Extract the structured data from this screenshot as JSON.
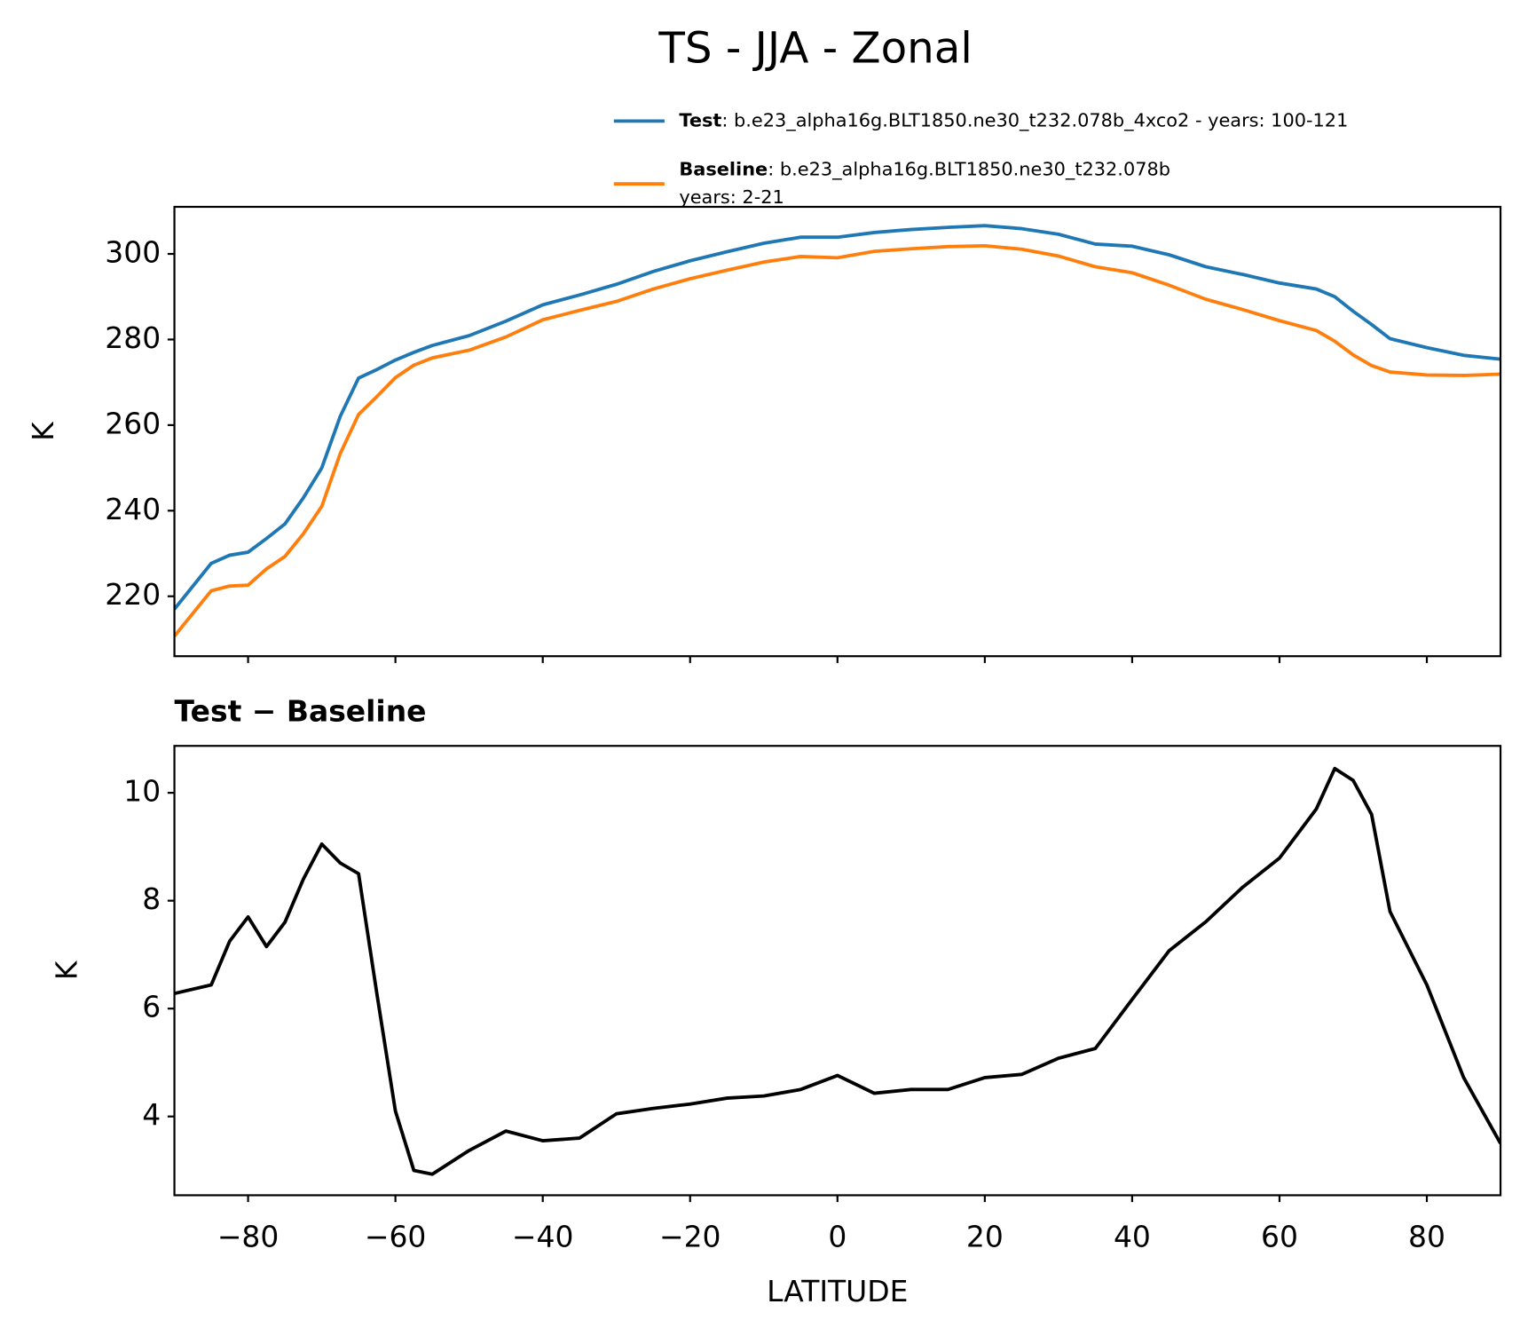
{
  "chart_data": [
    {
      "type": "line",
      "title": "TS - JJA - Zonal",
      "ylabel": "K",
      "x": [
        -90,
        -85,
        -82.5,
        -80,
        -77.5,
        -75,
        -72.5,
        -70,
        -67.5,
        -65,
        -62.5,
        -60,
        -57.5,
        -55,
        -50,
        -45,
        -40,
        -35,
        -30,
        -25,
        -20,
        -15,
        -10,
        -5,
        0,
        5,
        10,
        15,
        20,
        25,
        30,
        35,
        40,
        45,
        50,
        55,
        60,
        65,
        67.5,
        70,
        72.5,
        75,
        80,
        85,
        90
      ],
      "series": [
        {
          "name": "Test",
          "description": [
            ": b.e23_alpha16g.BLT1850.ne30_t232.078b_4xco2 - years: 100-121"
          ],
          "color": "#1f77b4",
          "values": [
            217,
            227.7,
            229.6,
            230.3,
            233.5,
            236.9,
            243,
            250,
            262,
            271,
            273,
            275.2,
            277,
            278.6,
            280.9,
            284.3,
            288.1,
            290.4,
            292.9,
            295.9,
            298.4,
            300.5,
            302.5,
            303.9,
            303.9,
            305,
            305.7,
            306.2,
            306.6,
            305.9,
            304.6,
            302.3,
            301.8,
            299.8,
            297,
            295.2,
            293.2,
            291.8,
            290,
            286.6,
            283.5,
            280.2,
            278.1,
            276.3,
            275.4
          ]
        },
        {
          "name": "Baseline",
          "description": [
            ": b.e23_alpha16g.BLT1850.ne30_t232.078b",
            "years: 2-21"
          ],
          "color": "#ff7f0e",
          "values": [
            210.7,
            221.3,
            222.4,
            222.6,
            226.4,
            229.3,
            234.6,
            241.0,
            253.3,
            262.5,
            266.7,
            271.1,
            274,
            275.7,
            277.5,
            280.6,
            284.6,
            286.8,
            288.9,
            291.8,
            294.2,
            296.2,
            298.1,
            299.4,
            299.1,
            300.6,
            301.2,
            301.7,
            301.9,
            301.1,
            299.5,
            297.0,
            295.6,
            292.7,
            289.4,
            287.0,
            284.4,
            282.1,
            279.6,
            276.4,
            273.9,
            272.4,
            271.7,
            271.6,
            271.9
          ]
        }
      ],
      "xlim": [
        -90,
        90
      ],
      "xticks": [
        -80,
        -60,
        -40,
        -20,
        0,
        20,
        40,
        60,
        80
      ],
      "ylim": [
        206,
        311
      ],
      "yticks": [
        220,
        240,
        260,
        280,
        300
      ]
    },
    {
      "type": "line",
      "title": "Test − Baseline",
      "ylabel": "K",
      "xlabel": "LATITUDE",
      "x": [
        -90,
        -85,
        -82.5,
        -80,
        -77.5,
        -75,
        -72.5,
        -70,
        -67.5,
        -65,
        -62.5,
        -60,
        -57.5,
        -55,
        -50,
        -45,
        -40,
        -35,
        -30,
        -25,
        -20,
        -15,
        -10,
        -5,
        0,
        5,
        10,
        15,
        20,
        25,
        30,
        35,
        40,
        45,
        50,
        55,
        60,
        65,
        67.5,
        70,
        72.5,
        75,
        80,
        85,
        90
      ],
      "series": [
        {
          "color": "#000000",
          "values": [
            6.28,
            6.44,
            7.25,
            7.7,
            7.15,
            7.6,
            8.4,
            9.05,
            8.7,
            8.5,
            6.26,
            4.1,
            3.0,
            2.93,
            3.37,
            3.73,
            3.55,
            3.6,
            4.05,
            4.15,
            4.23,
            4.34,
            4.38,
            4.5,
            4.76,
            4.43,
            4.5,
            4.5,
            4.72,
            4.78,
            5.08,
            5.26,
            6.17,
            7.07,
            7.61,
            8.25,
            8.79,
            9.7,
            10.45,
            10.23,
            9.6,
            7.8,
            6.44,
            4.72,
            3.5
          ]
        }
      ],
      "xlim": [
        -90,
        90
      ],
      "xticks": [
        {
          "value": -80,
          "label": "−80"
        },
        {
          "value": -60,
          "label": "−60"
        },
        {
          "value": -40,
          "label": "−40"
        },
        {
          "value": -20,
          "label": "−20"
        },
        0,
        20,
        40,
        60,
        80
      ],
      "ylim": [
        2.54,
        10.87
      ],
      "yticks": [
        4,
        6,
        8,
        10
      ]
    }
  ]
}
